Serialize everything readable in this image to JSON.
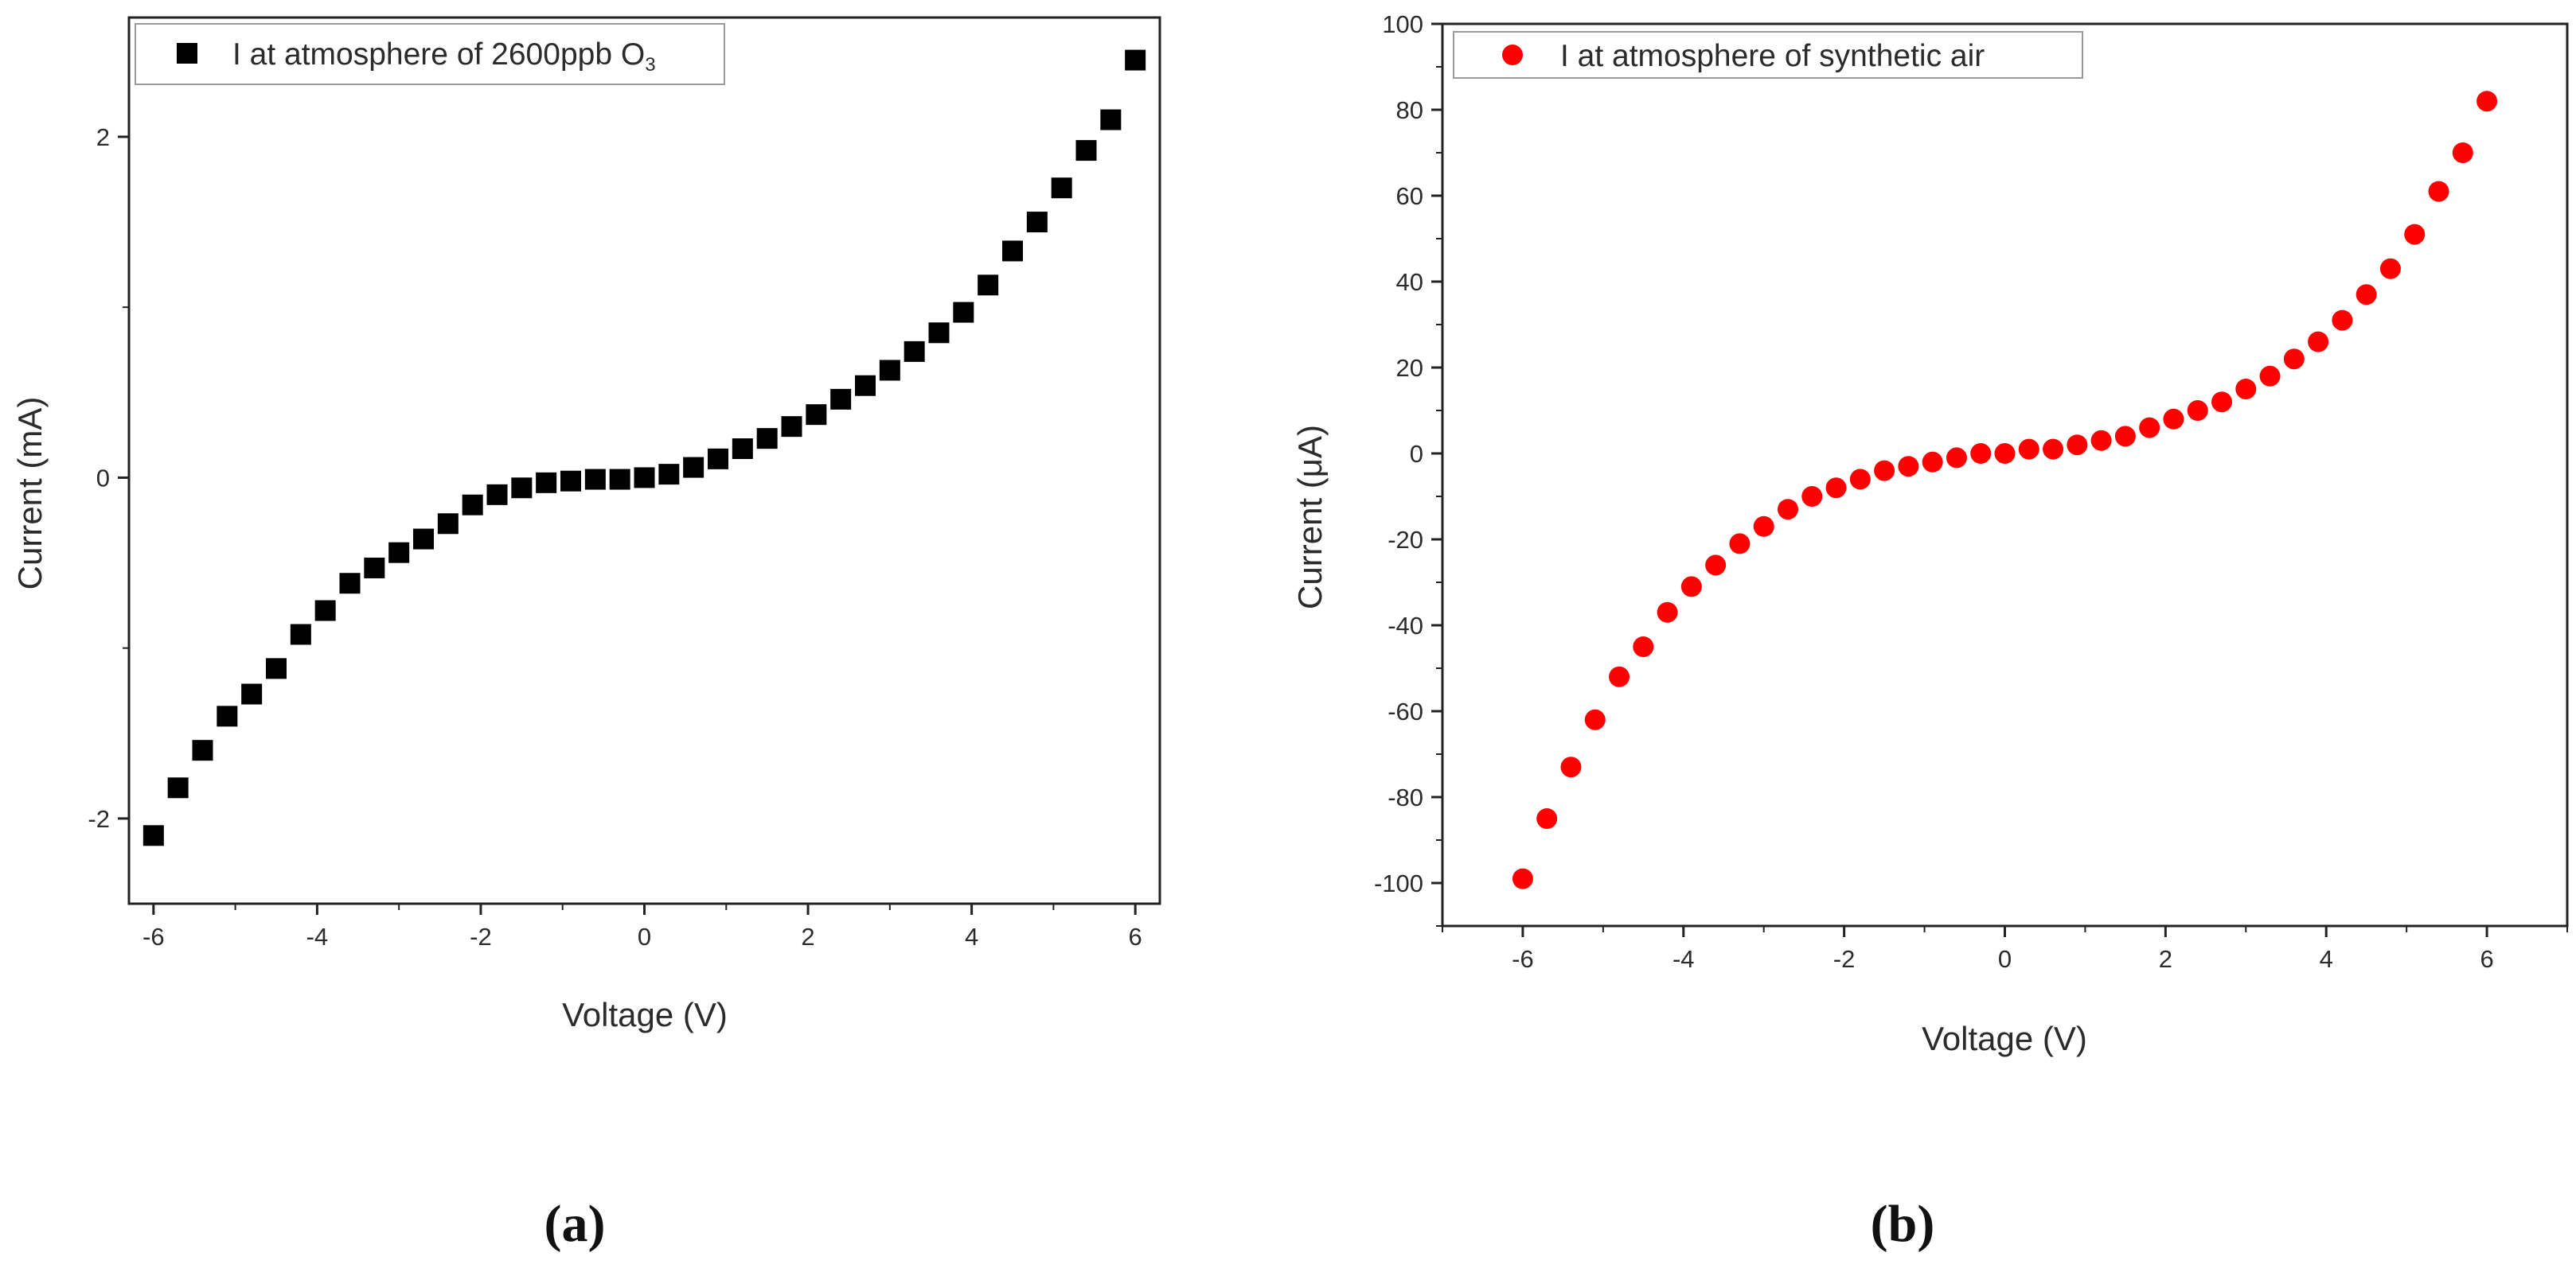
{
  "chart_data": [
    {
      "panel": "a",
      "caption_label": "(a)",
      "type": "scatter",
      "marker": "square",
      "color": "#000000",
      "xlabel": "Voltage (V)",
      "ylabel": "Current (mA)",
      "xlim": [
        -6.3,
        6.3
      ],
      "ylim": [
        -2.5,
        2.7
      ],
      "xticks": [
        -6,
        -4,
        -2,
        0,
        2,
        4,
        6
      ],
      "yticks": [
        -2,
        0,
        2
      ],
      "legend": {
        "text": "I at atmosphere of 2600ppb O",
        "subscript": "3",
        "position": "top-left"
      },
      "series": [
        {
          "name": "I at atmosphere of 2600ppb O3",
          "x": [
            -6.0,
            -5.7,
            -5.4,
            -5.1,
            -4.8,
            -4.5,
            -4.2,
            -3.9,
            -3.6,
            -3.3,
            -3.0,
            -2.7,
            -2.4,
            -2.1,
            -1.8,
            -1.5,
            -1.2,
            -0.9,
            -0.6,
            -0.3,
            0.0,
            0.3,
            0.6,
            0.9,
            1.2,
            1.5,
            1.8,
            2.1,
            2.4,
            2.7,
            3.0,
            3.3,
            3.6,
            3.9,
            4.2,
            4.5,
            4.8,
            5.1,
            5.4,
            5.7,
            6.0
          ],
          "y": [
            -2.1,
            -1.82,
            -1.6,
            -1.4,
            -1.27,
            -1.12,
            -0.92,
            -0.78,
            -0.62,
            -0.53,
            -0.44,
            -0.36,
            -0.27,
            -0.16,
            -0.1,
            -0.06,
            -0.03,
            -0.02,
            -0.01,
            -0.01,
            0.0,
            0.02,
            0.06,
            0.11,
            0.17,
            0.23,
            0.3,
            0.37,
            0.46,
            0.54,
            0.63,
            0.74,
            0.85,
            0.97,
            1.13,
            1.33,
            1.5,
            1.7,
            1.92,
            2.1,
            2.45
          ]
        }
      ]
    },
    {
      "panel": "b",
      "caption_label": "(b)",
      "type": "scatter",
      "marker": "circle",
      "color": "#ff0000",
      "xlabel": "Voltage (V)",
      "ylabel": "Current (μA)",
      "xlim": [
        -7,
        7
      ],
      "ylim": [
        -110,
        100
      ],
      "xticks": [
        -6,
        -4,
        -2,
        0,
        2,
        4,
        6
      ],
      "yticks": [
        -100,
        -80,
        -60,
        -40,
        -20,
        0,
        20,
        40,
        60,
        80,
        100
      ],
      "legend": {
        "text": "I at atmosphere of synthetic air",
        "subscript": "",
        "position": "top-left"
      },
      "series": [
        {
          "name": "I at atmosphere of synthetic air",
          "x": [
            -6.0,
            -5.7,
            -5.4,
            -5.1,
            -4.8,
            -4.5,
            -4.2,
            -3.9,
            -3.6,
            -3.3,
            -3.0,
            -2.7,
            -2.4,
            -2.1,
            -1.8,
            -1.5,
            -1.2,
            -0.9,
            -0.6,
            -0.3,
            0.0,
            0.3,
            0.6,
            0.9,
            1.2,
            1.5,
            1.8,
            2.1,
            2.4,
            2.7,
            3.0,
            3.3,
            3.6,
            3.9,
            4.2,
            4.5,
            4.8,
            5.1,
            5.4,
            5.7,
            6.0
          ],
          "y": [
            -99,
            -85,
            -73,
            -62,
            -52,
            -45,
            -37,
            -31,
            -26,
            -21,
            -17,
            -13,
            -10,
            -8,
            -6,
            -4,
            -3,
            -2,
            -1,
            0,
            0,
            1,
            1,
            2,
            3,
            4,
            6,
            8,
            10,
            12,
            15,
            18,
            22,
            26,
            31,
            37,
            43,
            51,
            61,
            70,
            82
          ]
        }
      ]
    }
  ]
}
